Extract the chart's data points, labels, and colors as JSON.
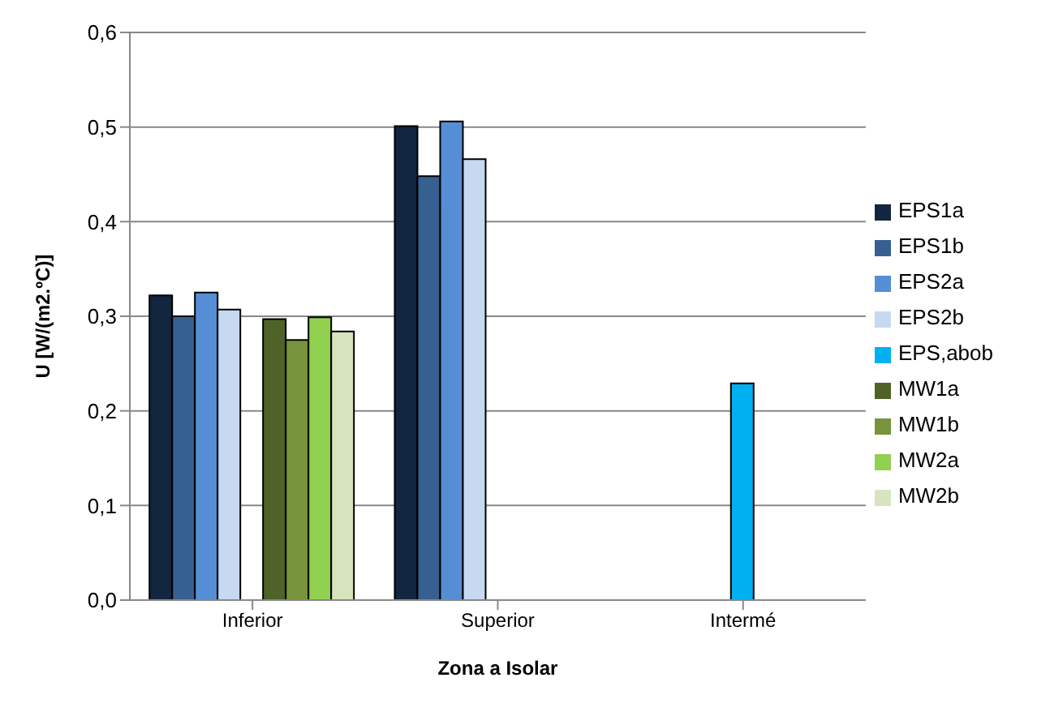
{
  "chart_data": {
    "type": "bar",
    "xlabel": "Zona a Isolar",
    "ylabel": "U [W/(m2.ºC)]",
    "categories": [
      "Inferior",
      "Superior",
      "Intermé"
    ],
    "ylim": [
      0,
      0.6
    ],
    "yticks": [
      {
        "value": 0,
        "label": "0,0"
      },
      {
        "value": 0.1,
        "label": "0,1"
      },
      {
        "value": 0.2,
        "label": "0,2"
      },
      {
        "value": 0.3,
        "label": "0,3"
      },
      {
        "value": 0.4,
        "label": "0,4"
      },
      {
        "value": 0.5,
        "label": "0,5"
      },
      {
        "value": 0.6,
        "label": "0,6"
      }
    ],
    "grid": "y",
    "legend": "right",
    "series": [
      {
        "name": "EPS1a",
        "color": "#12263f",
        "values": [
          0.322,
          0.501,
          null
        ]
      },
      {
        "name": "EPS1b",
        "color": "#376092",
        "values": [
          0.3,
          0.448,
          null
        ]
      },
      {
        "name": "EPS2a",
        "color": "#558ed5",
        "values": [
          0.325,
          0.506,
          null
        ]
      },
      {
        "name": "EPS2b",
        "color": "#c6d9f1",
        "values": [
          0.307,
          0.466,
          null
        ]
      },
      {
        "name": "EPS,abob",
        "color": "#00b0f0",
        "values": [
          null,
          null,
          0.229
        ]
      },
      {
        "name": "MW1a",
        "color": "#4f6228",
        "values": [
          0.297,
          null,
          null
        ]
      },
      {
        "name": "MW1b",
        "color": "#77933c",
        "values": [
          0.275,
          null,
          null
        ]
      },
      {
        "name": "MW2a",
        "color": "#92d050",
        "values": [
          0.299,
          null,
          null
        ]
      },
      {
        "name": "MW2b",
        "color": "#d7e4bd",
        "values": [
          0.284,
          null,
          null
        ]
      }
    ]
  }
}
